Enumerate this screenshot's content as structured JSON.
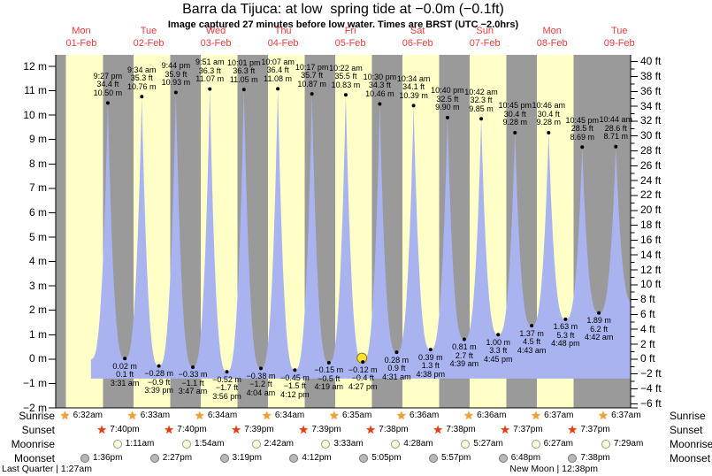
{
  "title": "Barra da Tijuca: at low  spring tide at −0.0m (−0.1ft)",
  "subtitle": "Image captured 27 minutes before low water. Times are BRST (UTC −2.0hrs)",
  "days": [
    {
      "name": "Mon",
      "date": "01-Feb"
    },
    {
      "name": "Tue",
      "date": "02-Feb"
    },
    {
      "name": "Wed",
      "date": "03-Feb"
    },
    {
      "name": "Thu",
      "date": "04-Feb"
    },
    {
      "name": "Fri",
      "date": "05-Feb"
    },
    {
      "name": "Sat",
      "date": "06-Feb"
    },
    {
      "name": "Sun",
      "date": "07-Feb"
    },
    {
      "name": "Mon",
      "date": "08-Feb"
    },
    {
      "name": "Tue",
      "date": "09-Feb"
    }
  ],
  "chart_data": {
    "type": "area",
    "ylabel_left_unit": "m",
    "ylabel_right_unit": "ft",
    "y_axis_m": {
      "min": -2,
      "max": 12,
      "step": 1
    },
    "y_axis_ft": {
      "min": -6,
      "max": 40,
      "step": 2,
      "minor_step": 1
    },
    "grid": "off",
    "legend": "none",
    "high_tides": [
      {
        "day": 1,
        "time": "9:27 pm",
        "ft": "34.4",
        "m": "10.50"
      },
      {
        "day": 2,
        "time": "9:34 am",
        "ft": "35.3",
        "m": "10.76"
      },
      {
        "day": 2,
        "time": "9:44 pm",
        "ft": "35.9",
        "m": "10.93"
      },
      {
        "day": 3,
        "time": "9:51 am",
        "ft": "36.3",
        "m": "11.07"
      },
      {
        "day": 3,
        "time": "10:01 pm",
        "ft": "36.3",
        "m": "11.05"
      },
      {
        "day": 4,
        "time": "10:07 am",
        "ft": "36.4",
        "m": "11.08"
      },
      {
        "day": 4,
        "time": "10:17 pm",
        "ft": "35.7",
        "m": "10.87"
      },
      {
        "day": 5,
        "time": "10:22 am",
        "ft": "35.5",
        "m": "10.83"
      },
      {
        "day": 5,
        "time": "10:30 pm",
        "ft": "34.3",
        "m": "10.46"
      },
      {
        "day": 6,
        "time": "10:34 am",
        "ft": "34.1",
        "m": "10.39"
      },
      {
        "day": 6,
        "time": "10:40 pm",
        "ft": "32.5",
        "m": "9.90"
      },
      {
        "day": 7,
        "time": "10:42 am",
        "ft": "32.3",
        "m": "9.85"
      },
      {
        "day": 7,
        "time": "10:45 pm",
        "ft": "30.4",
        "m": "9.28"
      },
      {
        "day": 8,
        "time": "10:46 am",
        "ft": "30.4",
        "m": "9.28"
      },
      {
        "day": 8,
        "time": "10:45 pm",
        "ft": "28.5",
        "m": "8.69"
      },
      {
        "day": 9,
        "time": "10:44 am",
        "ft": "28.6",
        "m": "8.71"
      }
    ],
    "low_tides": [
      {
        "day": 2,
        "time": "3:31 am",
        "m": "0.02",
        "ft": "0.1"
      },
      {
        "day": 2,
        "time": "3:39 pm",
        "m": "−0.28",
        "ft": "−0.9"
      },
      {
        "day": 3,
        "time": "3:47 am",
        "m": "−0.33",
        "ft": "−1.1"
      },
      {
        "day": 3,
        "time": "3:56 pm",
        "m": "−0.52",
        "ft": "−1.7"
      },
      {
        "day": 4,
        "time": "4:04 am",
        "m": "−0.38",
        "ft": "−1.2"
      },
      {
        "day": 4,
        "time": "4:12 pm",
        "m": "−0.45",
        "ft": "−1.5"
      },
      {
        "day": 5,
        "time": "4:19 am",
        "m": "−0.15",
        "ft": "−0.5"
      },
      {
        "day": 5,
        "time": "4:27 pm",
        "m": "−0.12",
        "ft": "−0.4"
      },
      {
        "day": 6,
        "time": "4:31 am",
        "m": "0.28",
        "ft": "0.9"
      },
      {
        "day": 6,
        "time": "4:38 pm",
        "m": "0.39",
        "ft": "1.3"
      },
      {
        "day": 7,
        "time": "4:39 am",
        "m": "0.81",
        "ft": "2.7"
      },
      {
        "day": 7,
        "time": "4:45 pm",
        "m": "1.00",
        "ft": "3.3"
      },
      {
        "day": 8,
        "time": "4:43 am",
        "m": "1.37",
        "ft": "4.5"
      },
      {
        "day": 8,
        "time": "4:48 pm",
        "m": "1.63",
        "ft": "5.3"
      },
      {
        "day": 9,
        "time": "4:42 am",
        "m": "1.89",
        "ft": "6.2"
      }
    ],
    "current_marker_low_index": 7
  },
  "almanac": {
    "sunrise": {
      "label": "Sunrise",
      "events": [
        {
          "day": 1,
          "time": "6:32am"
        },
        {
          "day": 2,
          "time": "6:33am"
        },
        {
          "day": 3,
          "time": "6:34am"
        },
        {
          "day": 4,
          "time": "6:34am"
        },
        {
          "day": 5,
          "time": "6:35am"
        },
        {
          "day": 6,
          "time": "6:36am"
        },
        {
          "day": 7,
          "time": "6:36am"
        },
        {
          "day": 8,
          "time": "6:37am"
        },
        {
          "day": 9,
          "time": "6:37am"
        }
      ]
    },
    "sunset": {
      "label": "Sunset",
      "events": [
        {
          "day": 1,
          "time": "7:40pm"
        },
        {
          "day": 2,
          "time": "7:40pm"
        },
        {
          "day": 3,
          "time": "7:39pm"
        },
        {
          "day": 4,
          "time": "7:39pm"
        },
        {
          "day": 5,
          "time": "7:38pm"
        },
        {
          "day": 6,
          "time": "7:38pm"
        },
        {
          "day": 7,
          "time": "7:37pm"
        },
        {
          "day": 8,
          "time": "7:37pm"
        }
      ]
    },
    "moonrise": {
      "label": "Moonrise",
      "events": [
        {
          "day": 2,
          "time": "1:11am"
        },
        {
          "day": 3,
          "time": "1:54am"
        },
        {
          "day": 4,
          "time": "2:42am"
        },
        {
          "day": 5,
          "time": "3:33am"
        },
        {
          "day": 6,
          "time": "4:28am"
        },
        {
          "day": 7,
          "time": "5:27am"
        },
        {
          "day": 8,
          "time": "6:27am"
        },
        {
          "day": 9,
          "time": "7:29am"
        }
      ]
    },
    "moonset": {
      "label": "Moonset",
      "events": [
        {
          "day": 1,
          "time": "1:36pm"
        },
        {
          "day": 2,
          "time": "2:27pm"
        },
        {
          "day": 3,
          "time": "3:19pm"
        },
        {
          "day": 4,
          "time": "4:12pm"
        },
        {
          "day": 5,
          "time": "5:05pm"
        },
        {
          "day": 6,
          "time": "5:57pm"
        },
        {
          "day": 7,
          "time": "6:48pm"
        },
        {
          "day": 8,
          "time": "7:38pm"
        }
      ]
    }
  },
  "moon_phases": {
    "left": {
      "name": "Last Quarter",
      "time": "1:27am"
    },
    "marked": {
      "name": "New Moon",
      "time": "12:38pm",
      "day": 8
    }
  },
  "colors": {
    "day_band": "#ffffc8",
    "night_band": "#9a9a9a",
    "tide_fill": "#a9b3ef",
    "day_label_red": "#ee3b3b",
    "marker_yellow": "#ffe135",
    "marker_edge": "#8a7a00",
    "sunrise_star": "#f0a230",
    "sunset_star": "#e23c1a",
    "moonrise_fill": "#ffffd2",
    "moonset_fill": "#b8b8b8",
    "axis": "#000000"
  }
}
